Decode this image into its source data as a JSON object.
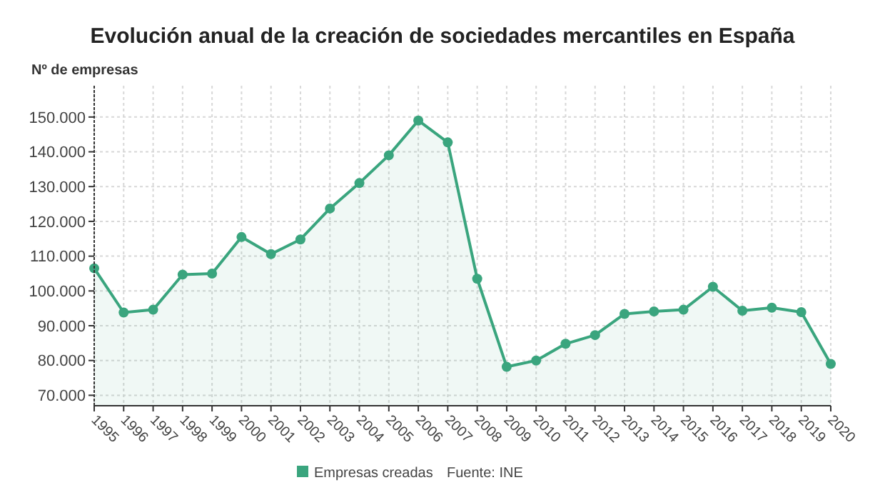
{
  "chart_data": {
    "type": "area",
    "title": "Evolución anual de la creación de sociedades mercantiles en España",
    "ylabel": "Nº de empresas",
    "categories": [
      "1995",
      "1996",
      "1997",
      "1998",
      "1999",
      "2000",
      "2001",
      "2002",
      "2003",
      "2004",
      "2005",
      "2006",
      "2007",
      "2008",
      "2009",
      "2010",
      "2011",
      "2012",
      "2013",
      "2014",
      "2015",
      "2016",
      "2017",
      "2018",
      "2019",
      "2020"
    ],
    "series": [
      {
        "name": "Empresas creadas",
        "color": "#3aa57e",
        "values": [
          106500,
          93800,
          94600,
          104700,
          105000,
          115500,
          110600,
          114800,
          123700,
          131000,
          139000,
          149000,
          142700,
          103500,
          78200,
          80000,
          84800,
          87300,
          93400,
          94100,
          94600,
          101200,
          94300,
          95200,
          93900,
          79000
        ]
      }
    ],
    "ylim": [
      67000,
      159000
    ],
    "yticks": [
      {
        "value": 70000,
        "label": "70.000"
      },
      {
        "value": 80000,
        "label": "80.000"
      },
      {
        "value": 90000,
        "label": "90.000"
      },
      {
        "value": 100000,
        "label": "100.000"
      },
      {
        "value": 110000,
        "label": "110.000"
      },
      {
        "value": 120000,
        "label": "120.000"
      },
      {
        "value": 130000,
        "label": "130.000"
      },
      {
        "value": 140000,
        "label": "140.000"
      },
      {
        "value": 150000,
        "label": "150.000"
      }
    ],
    "grid": true,
    "legend": "bottom",
    "marker": "circle",
    "line_style": "solid",
    "annotations": [
      "Fuente: INE"
    ]
  }
}
